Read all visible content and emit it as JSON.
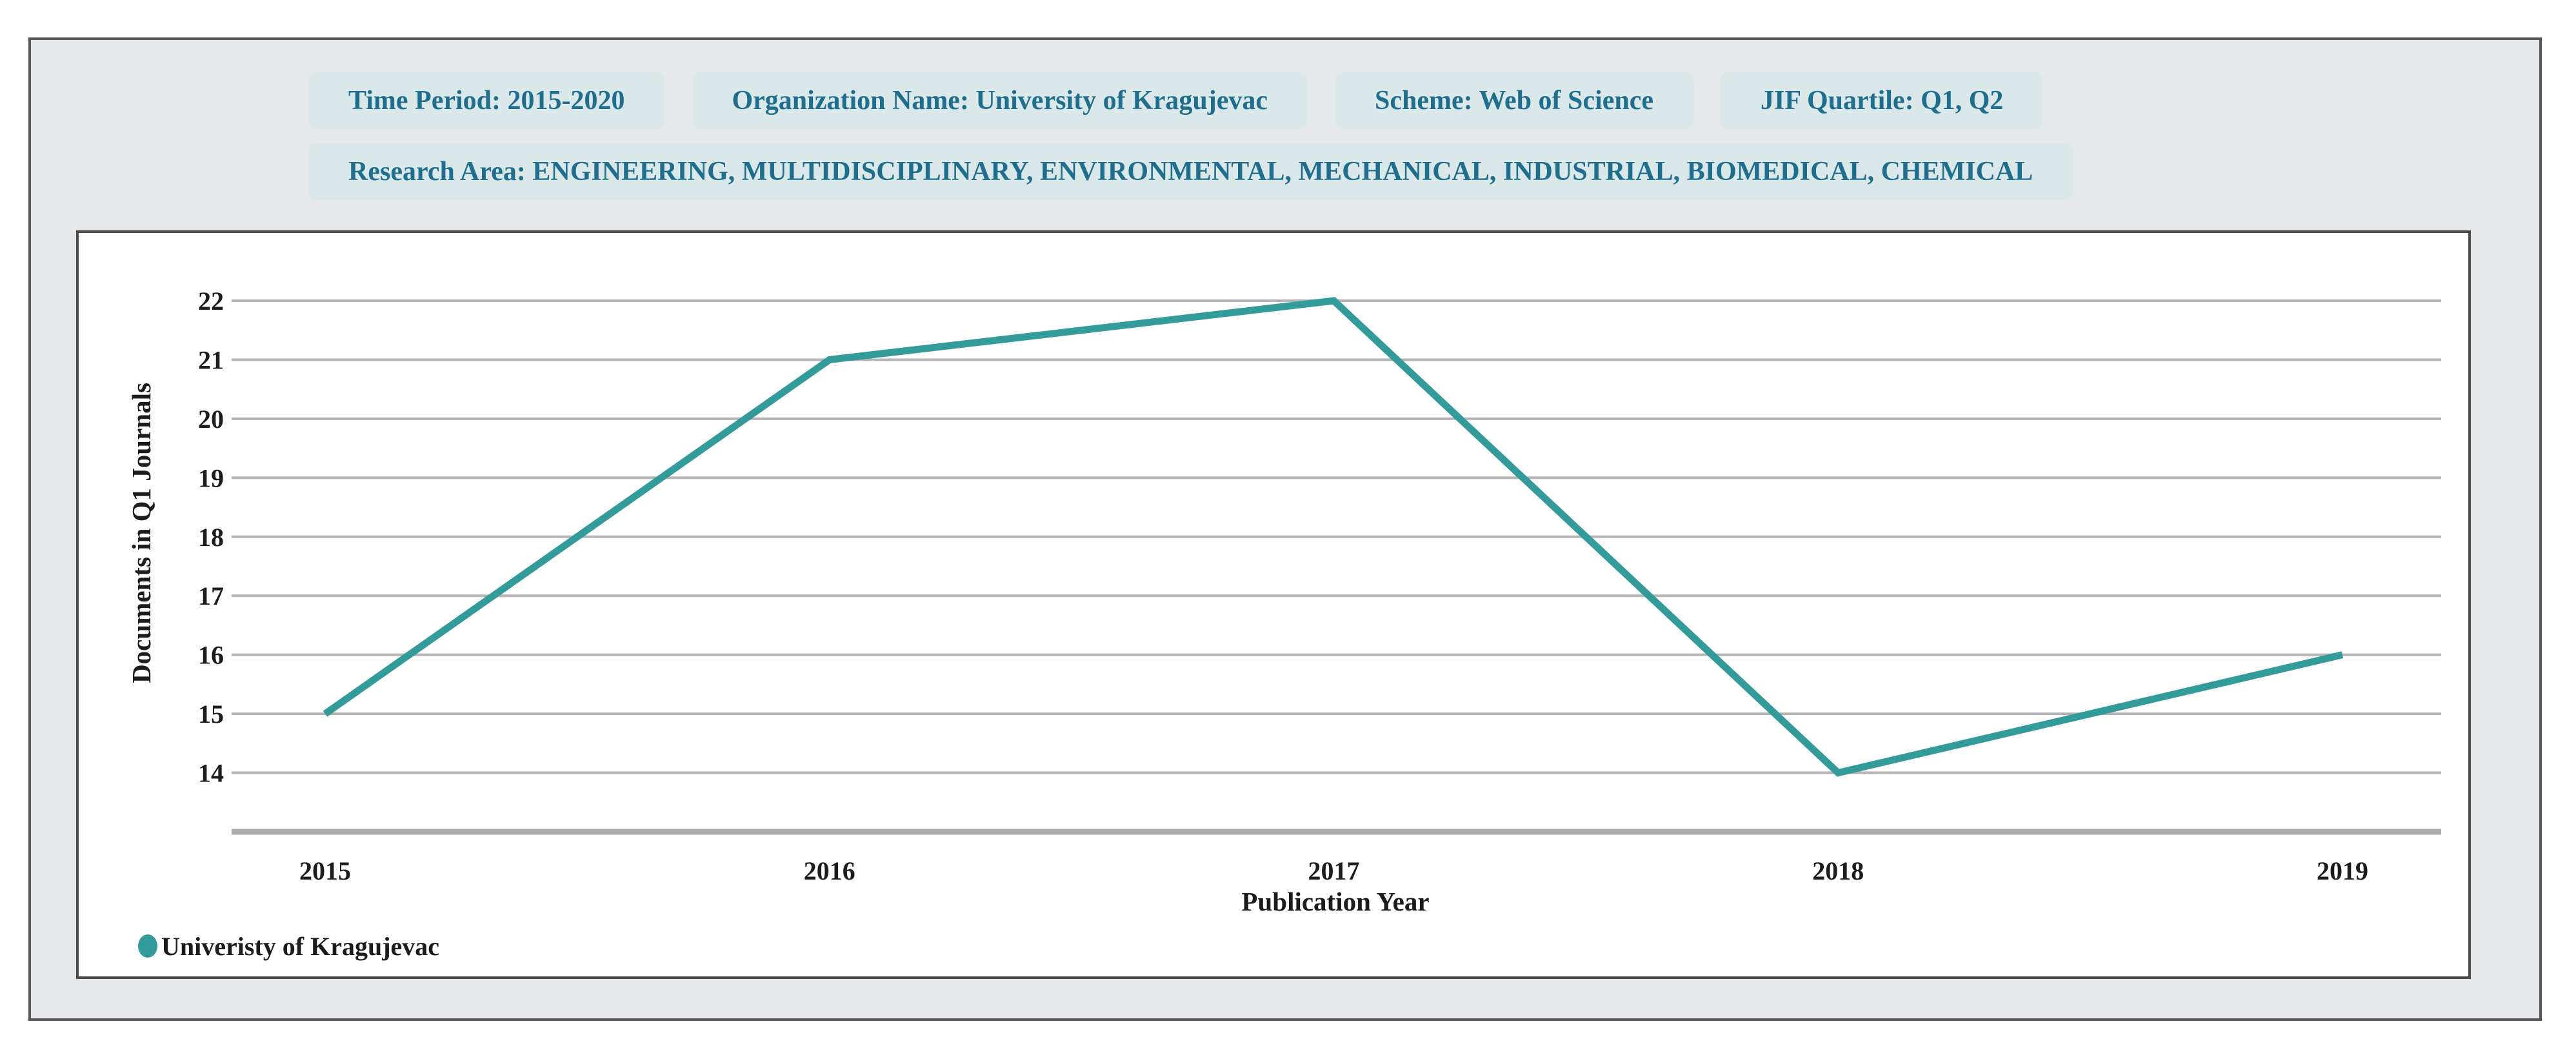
{
  "header": {
    "badges": [
      "Time Period: 2015-2020",
      "Organization Name: University of Kragujevac",
      "Scheme: Web of Science",
      "JIF Quartile: Q1, Q2"
    ],
    "research_area": "Research Area: ENGINEERING, MULTIDISCIPLINARY, ENVIRONMENTAL, MECHANICAL, INDUSTRIAL, BIOMEDICAL, CHEMICAL"
  },
  "chart_data": {
    "type": "line",
    "x": [
      2015,
      2016,
      2017,
      2018,
      2019
    ],
    "series": [
      {
        "name": "Univeristy of Kragujevac",
        "values": [
          15,
          21,
          22,
          14,
          16
        ]
      }
    ],
    "title": "",
    "xlabel": "Publication Year",
    "ylabel": "Documents in Q1 Journals",
    "yticks": [
      14,
      15,
      16,
      17,
      18,
      19,
      20,
      21,
      22
    ],
    "y_axis_baseline": 13,
    "ylim": [
      13,
      22
    ],
    "grid": true,
    "legend_position": "bottom-left",
    "line_color": "#349b9b"
  },
  "colors": {
    "accent_line": "#349b9b",
    "badge_bg": "#dbe8e9",
    "badge_text": "#1f6e8e",
    "gridline": "#b5b5b7",
    "axis_line": "#ababad",
    "text": "#1c1c1c",
    "panel_border": "#4a4b4d",
    "frame_border": "#55565a",
    "frame_bg": "#e6e8e9"
  }
}
